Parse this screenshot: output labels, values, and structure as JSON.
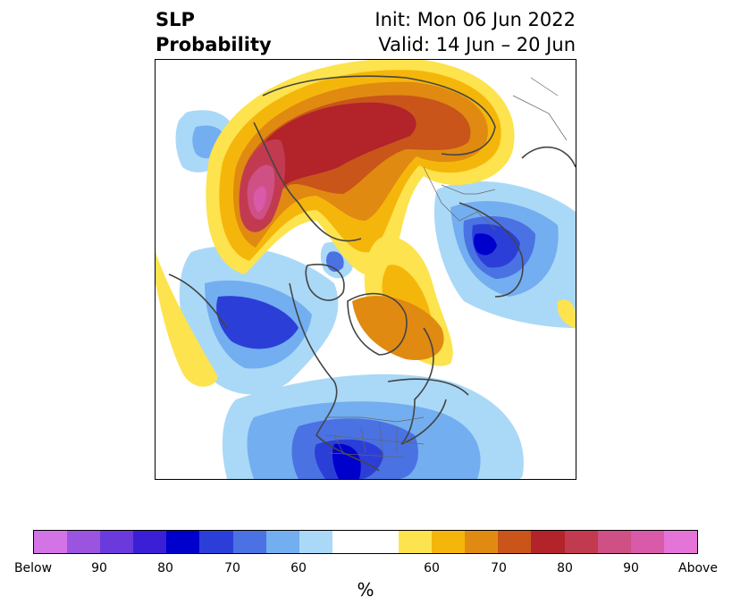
{
  "header": {
    "title_line1": "SLP",
    "title_line2": "Probability",
    "init_label": "Init: Mon 06 Jun 2022",
    "valid_label": "Valid: 14 Jun – 20 Jun"
  },
  "map": {
    "projection": "north-polar-stereographic",
    "features": [
      "coastlines",
      "country-borders",
      "us-state-borders"
    ]
  },
  "colorbar": {
    "unit_label": "%",
    "ticks": [
      "Below",
      "90",
      "80",
      "70",
      "60",
      "60",
      "70",
      "80",
      "90",
      "Above"
    ],
    "below_colors": [
      "#d473e6",
      "#9a54e0",
      "#6a3adc",
      "#3b1fd6",
      "#0000cc",
      "#2b3fd8",
      "#4a72e3",
      "#73aef0",
      "#aad9f7"
    ],
    "neutral_color": "#ffffff",
    "above_colors": [
      "#fde34d",
      "#f5b60b",
      "#e08a12",
      "#c9551a",
      "#b2232a",
      "#c23a50",
      "#cf5085",
      "#d95aa8",
      "#e474d8"
    ]
  }
}
